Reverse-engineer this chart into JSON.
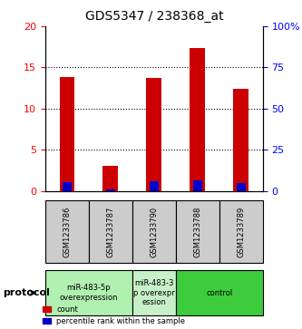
{
  "title": "GDS5347 / 238368_at",
  "samples": [
    "GSM1233786",
    "GSM1233787",
    "GSM1233790",
    "GSM1233788",
    "GSM1233789"
  ],
  "red_values": [
    13.8,
    3.0,
    13.7,
    17.4,
    12.4
  ],
  "blue_values": [
    5.5,
    1.1,
    5.55,
    6.1,
    4.95
  ],
  "groups": [
    {
      "label": "miR-483-5p\noverexpression",
      "samples": [
        0,
        1
      ],
      "color": "#b0f0b0"
    },
    {
      "label": "miR-483-3\np overexpr\nession",
      "samples": [
        2
      ],
      "color": "#c8f0c8"
    },
    {
      "label": "control",
      "samples": [
        3,
        4
      ],
      "color": "#3ccc3c"
    }
  ],
  "ylim_left": [
    0,
    20
  ],
  "ylim_right": [
    0,
    100
  ],
  "yticks_left": [
    0,
    5,
    10,
    15,
    20
  ],
  "yticks_right": [
    0,
    25,
    50,
    75,
    100
  ],
  "ytick_labels_right": [
    "0",
    "25",
    "50",
    "75",
    "100%"
  ],
  "bar_width": 0.35,
  "red_color": "#cc0000",
  "blue_color": "#0000cc",
  "grid_color": "#000000",
  "label_count": "count",
  "label_percentile": "percentile rank within the sample",
  "protocol_label": "protocol"
}
